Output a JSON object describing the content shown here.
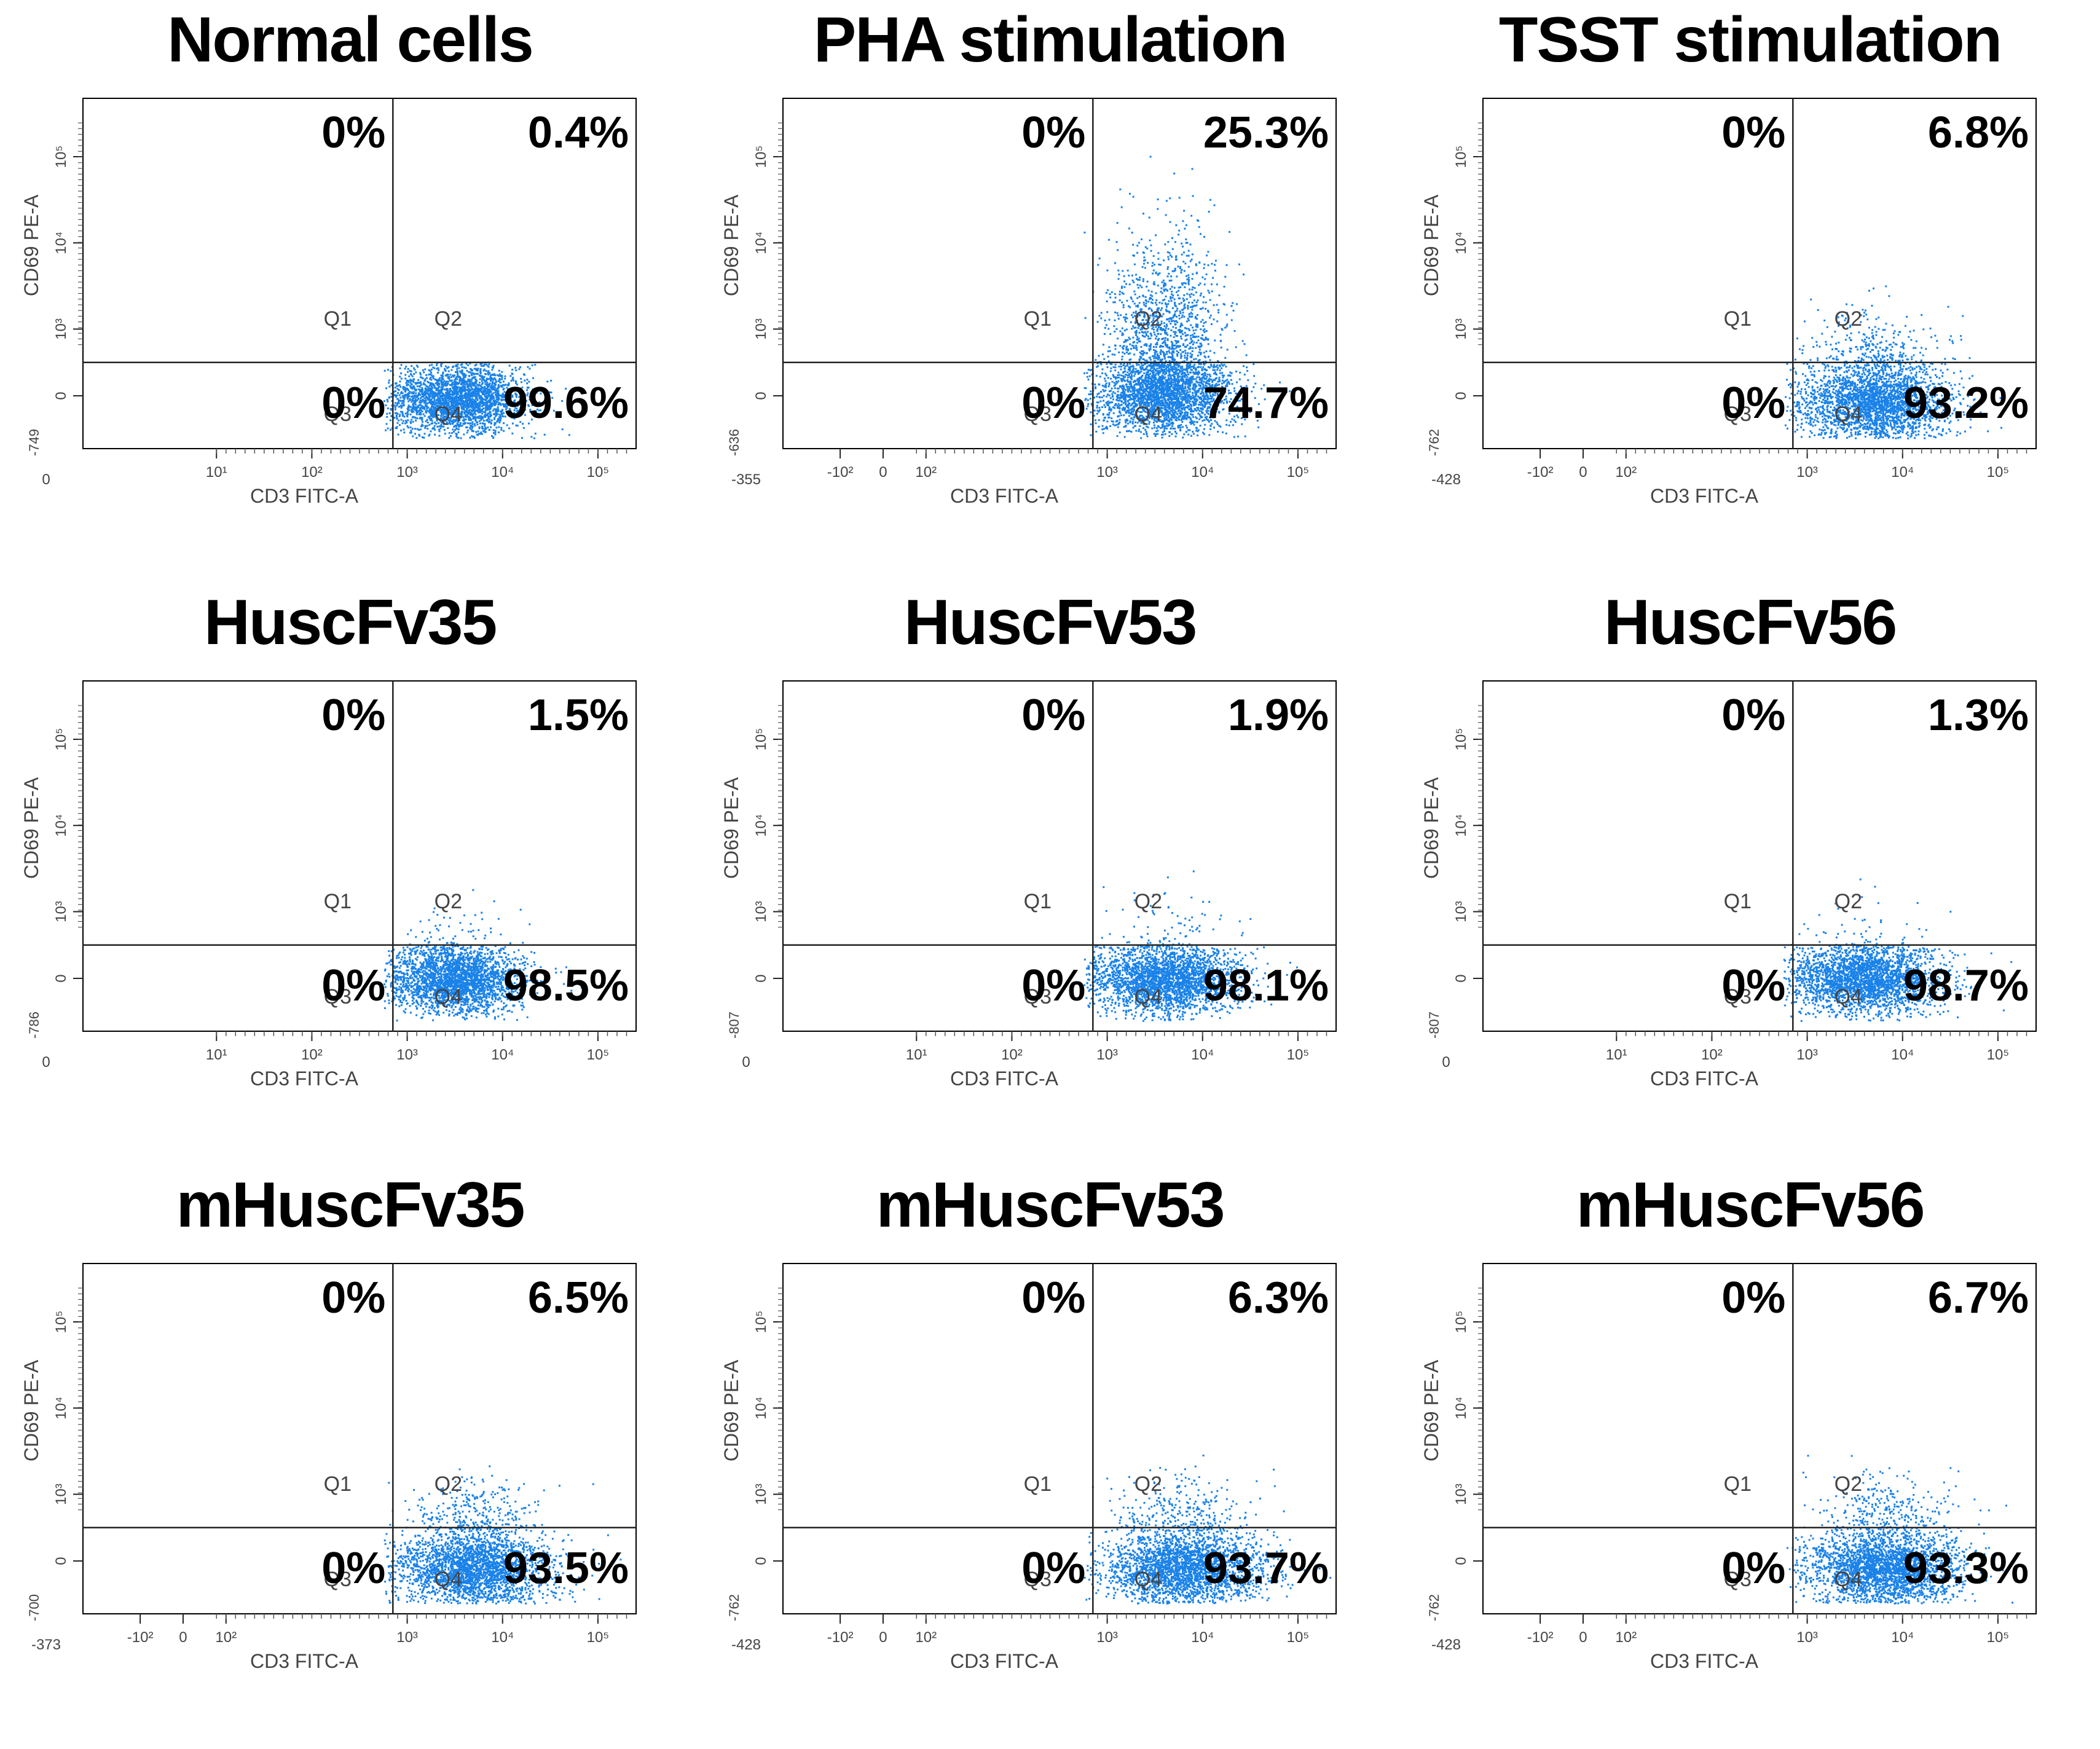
{
  "figure": {
    "axis_x_label": "CD3 FITC-A",
    "axis_y_label": "CD69 PE-A",
    "quadrant_labels": [
      "Q1",
      "Q2",
      "Q3",
      "Q4"
    ],
    "dot_color": "#1a82e8"
  },
  "chart_data": [
    {
      "type": "scatter",
      "title": "Normal cells",
      "xlabel": "CD3 FITC-A",
      "ylabel": "CD69 PE-A",
      "x_min_label": "0",
      "y_min_label": "-749",
      "x_ticks": [
        "10¹",
        "10²",
        "10³",
        "10⁴",
        "10⁵"
      ],
      "y_ticks": [
        "0",
        "10³",
        "10⁴",
        "10⁵"
      ],
      "quadrants": {
        "Q1": "0%",
        "Q2": "0.4%",
        "Q3": "0%",
        "Q4": "99.6%"
      },
      "cluster": {
        "x_decade": 3.5,
        "y_decade": -0.1,
        "spread_x": 0.35,
        "spread_y": 0.55
      },
      "q2_cluster": 0.0
    },
    {
      "type": "scatter",
      "title": "PHA stimulation",
      "xlabel": "CD3 FITC-A",
      "ylabel": "CD69 PE-A",
      "x_min_label": "-355",
      "y_min_label": "-636",
      "x_ticks": [
        "-10²",
        "0",
        "10²",
        "10³",
        "10⁴",
        "10⁵"
      ],
      "y_ticks": [
        "0",
        "10³",
        "10⁴",
        "10⁵"
      ],
      "quadrants": {
        "Q1": "0%",
        "Q2": "25.3%",
        "Q3": "0%",
        "Q4": "74.7%"
      },
      "cluster": {
        "x_decade": 3.6,
        "y_decade": 0.0,
        "spread_x": 0.35,
        "spread_y": 0.6
      },
      "q2_cluster": 0.253
    },
    {
      "type": "scatter",
      "title": "TSST stimulation",
      "xlabel": "CD3 FITC-A",
      "ylabel": "CD69 PE-A",
      "x_min_label": "-428",
      "y_min_label": "-762",
      "x_ticks": [
        "-10²",
        "0",
        "10²",
        "10³",
        "10⁴",
        "10⁵"
      ],
      "y_ticks": [
        "0",
        "10³",
        "10⁴",
        "10⁵"
      ],
      "quadrants": {
        "Q1": "0%",
        "Q2": "6.8%",
        "Q3": "0%",
        "Q4": "93.2%"
      },
      "cluster": {
        "x_decade": 3.7,
        "y_decade": -0.15,
        "spread_x": 0.4,
        "spread_y": 0.6
      },
      "q2_cluster": 0.068
    },
    {
      "type": "scatter",
      "title": "HuscFv35",
      "xlabel": "CD3 FITC-A",
      "ylabel": "CD69 PE-A",
      "x_min_label": "0",
      "y_min_label": "-786",
      "x_ticks": [
        "10¹",
        "10²",
        "10³",
        "10⁴",
        "10⁵"
      ],
      "y_ticks": [
        "0",
        "10³",
        "10⁴",
        "10⁵"
      ],
      "quadrants": {
        "Q1": "0%",
        "Q2": "1.5%",
        "Q3": "0%",
        "Q4": "98.5%"
      },
      "cluster": {
        "x_decade": 3.5,
        "y_decade": -0.05,
        "spread_x": 0.35,
        "spread_y": 0.55
      },
      "q2_cluster": 0.015
    },
    {
      "type": "scatter",
      "title": "HuscFv53",
      "xlabel": "CD3 FITC-A",
      "ylabel": "CD69 PE-A",
      "x_min_label": "0",
      "y_min_label": "-807",
      "x_ticks": [
        "10¹",
        "10²",
        "10³",
        "10⁴",
        "10⁵"
      ],
      "y_ticks": [
        "0",
        "10³",
        "10⁴",
        "10⁵"
      ],
      "quadrants": {
        "Q1": "0%",
        "Q2": "1.9%",
        "Q3": "0%",
        "Q4": "98.1%"
      },
      "cluster": {
        "x_decade": 3.6,
        "y_decade": -0.05,
        "spread_x": 0.4,
        "spread_y": 0.55
      },
      "q2_cluster": 0.019
    },
    {
      "type": "scatter",
      "title": "HuscFv56",
      "xlabel": "CD3 FITC-A",
      "ylabel": "CD69 PE-A",
      "x_min_label": "0",
      "y_min_label": "-807",
      "x_ticks": [
        "10¹",
        "10²",
        "10³",
        "10⁴",
        "10⁵"
      ],
      "y_ticks": [
        "0",
        "10³",
        "10⁴",
        "10⁵"
      ],
      "quadrants": {
        "Q1": "0%",
        "Q2": "1.3%",
        "Q3": "0%",
        "Q4": "98.7%"
      },
      "cluster": {
        "x_decade": 3.6,
        "y_decade": -0.05,
        "spread_x": 0.4,
        "spread_y": 0.55
      },
      "q2_cluster": 0.013
    },
    {
      "type": "scatter",
      "title": "mHuscFv35",
      "xlabel": "CD3 FITC-A",
      "ylabel": "CD69 PE-A",
      "x_min_label": "-373",
      "y_min_label": "-700",
      "x_ticks": [
        "-10²",
        "0",
        "10²",
        "10³",
        "10⁴",
        "10⁵"
      ],
      "y_ticks": [
        "0",
        "10³",
        "10⁴",
        "10⁵"
      ],
      "quadrants": {
        "Q1": "0%",
        "Q2": "6.5%",
        "Q3": "0%",
        "Q4": "93.5%"
      },
      "cluster": {
        "x_decade": 3.7,
        "y_decade": -0.15,
        "spread_x": 0.4,
        "spread_y": 0.6
      },
      "q2_cluster": 0.065
    },
    {
      "type": "scatter",
      "title": "mHuscFv53",
      "xlabel": "CD3 FITC-A",
      "ylabel": "CD69 PE-A",
      "x_min_label": "-428",
      "y_min_label": "-762",
      "x_ticks": [
        "-10²",
        "0",
        "10²",
        "10³",
        "10⁴",
        "10⁵"
      ],
      "y_ticks": [
        "0",
        "10³",
        "10⁴",
        "10⁵"
      ],
      "quadrants": {
        "Q1": "0%",
        "Q2": "6.3%",
        "Q3": "0%",
        "Q4": "93.7%"
      },
      "cluster": {
        "x_decade": 3.8,
        "y_decade": -0.15,
        "spread_x": 0.4,
        "spread_y": 0.6
      },
      "q2_cluster": 0.063
    },
    {
      "type": "scatter",
      "title": "mHuscFv56",
      "xlabel": "CD3 FITC-A",
      "ylabel": "CD69 PE-A",
      "x_min_label": "-428",
      "y_min_label": "-762",
      "x_ticks": [
        "-10²",
        "0",
        "10²",
        "10³",
        "10⁴",
        "10⁵"
      ],
      "y_ticks": [
        "0",
        "10³",
        "10⁴",
        "10⁵"
      ],
      "quadrants": {
        "Q1": "0%",
        "Q2": "6.7%",
        "Q3": "0%",
        "Q4": "93.3%"
      },
      "cluster": {
        "x_decade": 3.8,
        "y_decade": -0.15,
        "spread_x": 0.4,
        "spread_y": 0.6
      },
      "q2_cluster": 0.067
    }
  ]
}
